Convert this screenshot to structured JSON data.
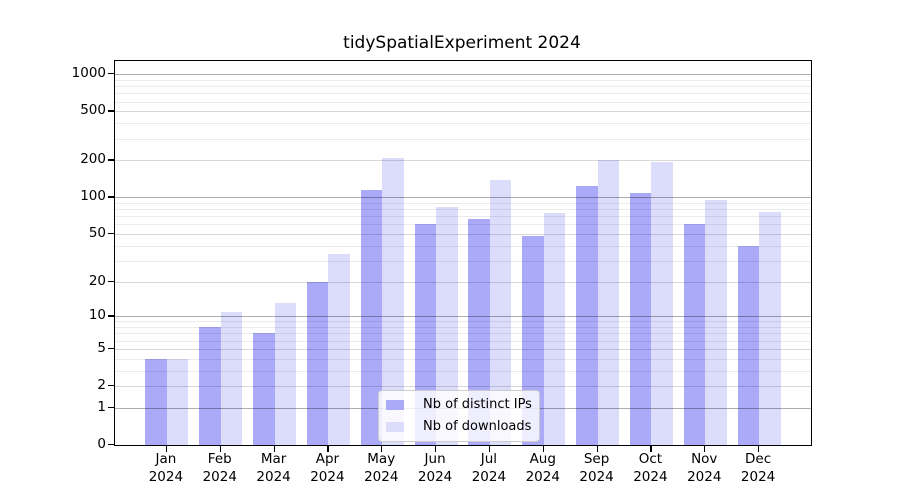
{
  "chart_data": {
    "type": "bar",
    "title": "tidySpatialExperiment 2024",
    "categories": [
      "Jan 2024",
      "Feb 2024",
      "Mar 2024",
      "Apr 2024",
      "May 2024",
      "Jun 2024",
      "Jul 2024",
      "Aug 2024",
      "Sep 2024",
      "Oct 2024",
      "Nov 2024",
      "Dec 2024"
    ],
    "x_tick_top": [
      "Jan",
      "Feb",
      "Mar",
      "Apr",
      "May",
      "Jun",
      "Jul",
      "Aug",
      "Sep",
      "Oct",
      "Nov",
      "Dec"
    ],
    "x_tick_bottom": "2024",
    "series": [
      {
        "name": "Nb of distinct IPs",
        "color": "#aaaaf9",
        "values": [
          4,
          8,
          7,
          20,
          115,
          60,
          67,
          48,
          123,
          108,
          61,
          40
        ]
      },
      {
        "name": "Nb of downloads",
        "color": "#dcdcfb",
        "values": [
          4,
          11,
          13,
          34,
          210,
          84,
          139,
          75,
          200,
          195,
          96,
          76
        ]
      }
    ],
    "y_axis": {
      "scale": "log1p",
      "ticks": [
        0,
        1,
        2,
        5,
        10,
        20,
        50,
        100,
        200,
        500,
        1000
      ],
      "minor_ticks": [
        3,
        4,
        6,
        7,
        8,
        9,
        30,
        40,
        60,
        70,
        80,
        90,
        300,
        400,
        600,
        700,
        800,
        900
      ],
      "emphasized_ticks": [
        1,
        10,
        100,
        1000
      ],
      "ylim": [
        0,
        1280
      ]
    },
    "grid": true,
    "legend_position": "inside-bottom-center"
  },
  "legend": {
    "items": [
      {
        "label": "Nb of distinct IPs",
        "color": "#aaaaf9"
      },
      {
        "label": "Nb of downloads",
        "color": "#dcdcfb"
      }
    ]
  }
}
